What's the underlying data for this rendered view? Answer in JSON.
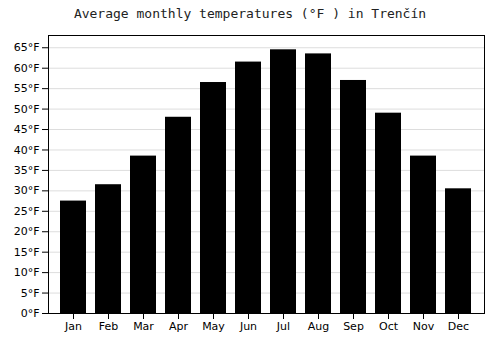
{
  "chart_data": {
    "type": "bar",
    "title": "Average monthly temperatures (°F ) in Trenčín",
    "categories": [
      "Jan",
      "Feb",
      "Mar",
      "Apr",
      "May",
      "Jun",
      "Jul",
      "Aug",
      "Sep",
      "Oct",
      "Nov",
      "Dec"
    ],
    "values": [
      27.5,
      31.5,
      38.5,
      48.0,
      56.5,
      61.5,
      64.5,
      63.5,
      57.0,
      49.0,
      38.5,
      30.5
    ],
    "ylim": [
      0,
      68
    ],
    "yticks": [
      {
        "value": 0,
        "label": "0°F"
      },
      {
        "value": 5,
        "label": "5°F"
      },
      {
        "value": 10,
        "label": "10°F"
      },
      {
        "value": 15,
        "label": "15°F"
      },
      {
        "value": 20,
        "label": "20°F"
      },
      {
        "value": 25,
        "label": "25°F"
      },
      {
        "value": 30,
        "label": "30°F"
      },
      {
        "value": 35,
        "label": "35°F"
      },
      {
        "value": 40,
        "label": "40°F"
      },
      {
        "value": 45,
        "label": "45°F"
      },
      {
        "value": 50,
        "label": "50°F"
      },
      {
        "value": 55,
        "label": "55°F"
      },
      {
        "value": 60,
        "label": "60°F"
      },
      {
        "value": 65,
        "label": "65°F"
      }
    ],
    "grid": true
  }
}
